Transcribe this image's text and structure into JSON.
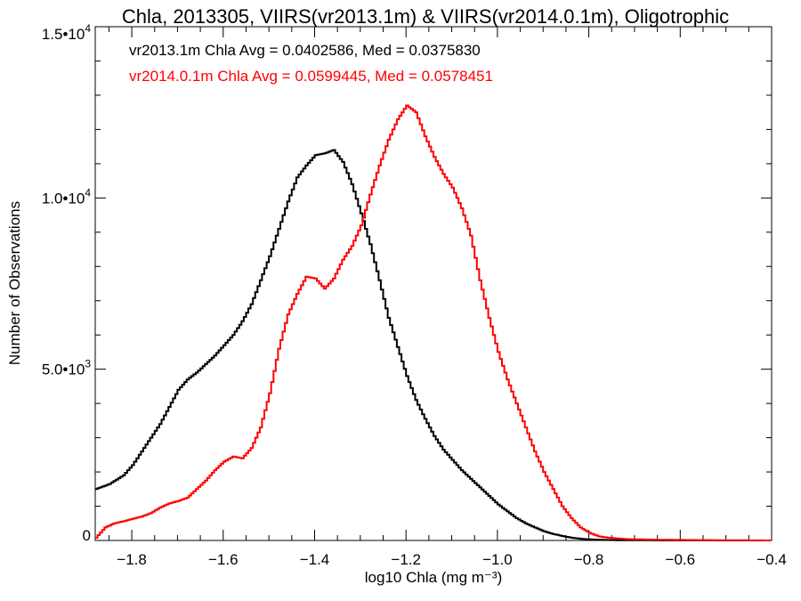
{
  "chart_data": {
    "type": "line",
    "title": "Chla, 2013305, VIIRS(vr2013.1m) & VIIRS(vr2014.0.1m), Oligotrophic",
    "xlabel": "log10 Chla (mg m⁻³)",
    "ylabel": "Number of Observations",
    "xlim": [
      -1.88,
      -0.4
    ],
    "ylim": [
      0,
      15000
    ],
    "xticks": [
      "−1.8",
      "−1.6",
      "−1.4",
      "−1.2",
      "−1.0",
      "−0.8",
      "−0.6",
      "−0.4"
    ],
    "xtick_values": [
      -1.8,
      -1.6,
      -1.4,
      -1.2,
      -1.0,
      -0.8,
      -0.6,
      -0.4
    ],
    "ytick_values": [
      0,
      5000,
      10000,
      15000
    ],
    "yticks": [
      {
        "mant": "0",
        "exp": ""
      },
      {
        "mant": "5.0•10",
        "exp": "3"
      },
      {
        "mant": "1.0•10",
        "exp": "4"
      },
      {
        "mant": "1.5•10",
        "exp": "4"
      }
    ],
    "annotations": [
      "vr2013.1m Chla Avg = 0.0402586, Med = 0.0375830",
      "vr2014.0.1m Chla Avg = 0.0599445, Med = 0.0578451"
    ],
    "grid": false,
    "series": [
      {
        "color": "#000000",
        "x": [
          -1.88,
          -1.85,
          -1.82,
          -1.8,
          -1.78,
          -1.76,
          -1.74,
          -1.72,
          -1.7,
          -1.68,
          -1.66,
          -1.64,
          -1.62,
          -1.6,
          -1.58,
          -1.56,
          -1.54,
          -1.52,
          -1.5,
          -1.48,
          -1.46,
          -1.44,
          -1.42,
          -1.4,
          -1.38,
          -1.36,
          -1.34,
          -1.32,
          -1.3,
          -1.28,
          -1.26,
          -1.24,
          -1.22,
          -1.2,
          -1.18,
          -1.16,
          -1.14,
          -1.12,
          -1.1,
          -1.08,
          -1.06,
          -1.04,
          -1.02,
          -1.0,
          -0.98,
          -0.96,
          -0.94,
          -0.92,
          -0.9,
          -0.88,
          -0.86,
          -0.84,
          -0.82,
          -0.8,
          -0.78,
          -0.75,
          -0.7,
          -0.6,
          -0.5,
          -0.4
        ],
        "y": [
          1500,
          1650,
          1900,
          2200,
          2600,
          3000,
          3400,
          3900,
          4400,
          4700,
          4900,
          5150,
          5400,
          5700,
          6000,
          6400,
          6900,
          7600,
          8300,
          9100,
          9900,
          10600,
          10950,
          11250,
          11300,
          11400,
          11050,
          10400,
          9550,
          8650,
          7600,
          6500,
          5650,
          4800,
          4100,
          3550,
          3050,
          2650,
          2350,
          2050,
          1800,
          1550,
          1300,
          1050,
          850,
          650,
          500,
          380,
          270,
          190,
          130,
          80,
          50,
          30,
          20,
          10,
          5,
          2,
          1,
          0
        ]
      },
      {
        "color": "#ff0000",
        "x": [
          -1.88,
          -1.86,
          -1.84,
          -1.82,
          -1.8,
          -1.78,
          -1.76,
          -1.74,
          -1.72,
          -1.7,
          -1.68,
          -1.66,
          -1.64,
          -1.62,
          -1.6,
          -1.58,
          -1.56,
          -1.54,
          -1.52,
          -1.5,
          -1.48,
          -1.46,
          -1.44,
          -1.42,
          -1.4,
          -1.38,
          -1.36,
          -1.34,
          -1.32,
          -1.3,
          -1.28,
          -1.26,
          -1.24,
          -1.22,
          -1.2,
          -1.18,
          -1.16,
          -1.14,
          -1.12,
          -1.1,
          -1.08,
          -1.06,
          -1.04,
          -1.02,
          -1.0,
          -0.98,
          -0.96,
          -0.94,
          -0.92,
          -0.9,
          -0.88,
          -0.86,
          -0.84,
          -0.82,
          -0.8,
          -0.78,
          -0.76,
          -0.72,
          -0.65,
          -0.55,
          -0.4
        ],
        "y": [
          80,
          380,
          500,
          560,
          630,
          700,
          800,
          960,
          1080,
          1150,
          1250,
          1500,
          1750,
          2050,
          2300,
          2450,
          2400,
          2700,
          3300,
          4300,
          5600,
          6600,
          7200,
          7700,
          7650,
          7350,
          7650,
          8200,
          8600,
          9200,
          10100,
          10950,
          11700,
          12300,
          12700,
          12500,
          11800,
          11200,
          10700,
          10300,
          9700,
          8900,
          7600,
          6500,
          5500,
          4700,
          4000,
          3300,
          2600,
          2000,
          1500,
          1000,
          650,
          380,
          220,
          120,
          80,
          40,
          20,
          10,
          0
        ]
      }
    ]
  }
}
